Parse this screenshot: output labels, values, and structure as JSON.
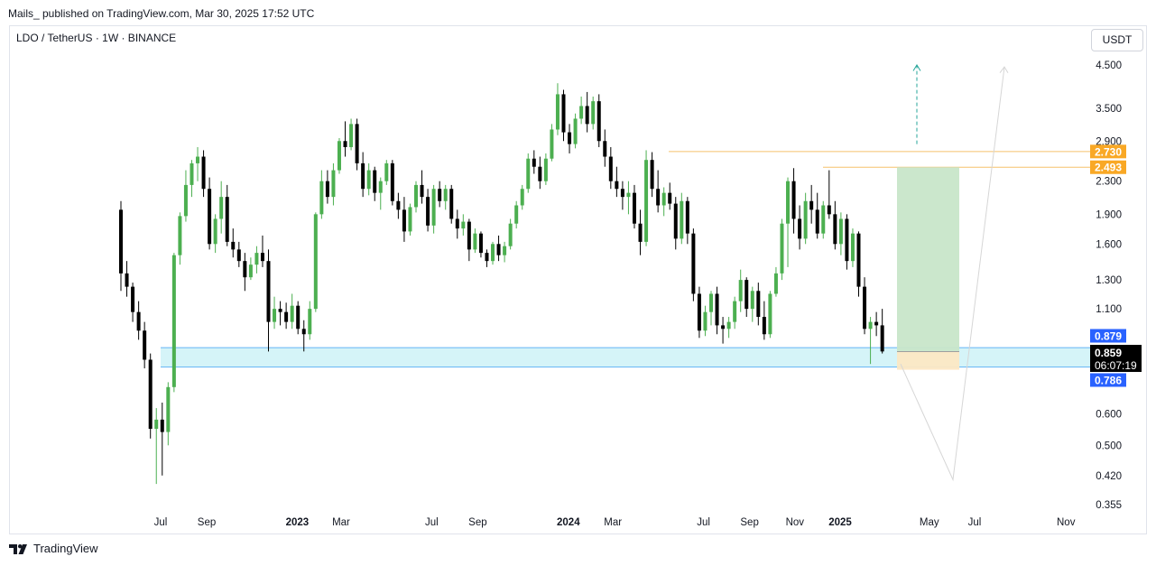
{
  "header": {
    "published": "Mails_ published on TradingView.com, Mar 30, 2025 17:52 UTC",
    "symbol": "LDO / TetherUS · 1W · BINANCE",
    "currency_button": "USDT"
  },
  "footer": {
    "brand": "TradingView"
  },
  "colors": {
    "up": "#4caf50",
    "down": "#000000",
    "zone": "#b2ebf2",
    "zone_line": "#64b5f6",
    "target_fill": "#c8e6c9",
    "stop_fill": "#fce8c4",
    "level_line": "#f5c26b",
    "label_orange": "#f9a825",
    "label_blue": "#2962ff",
    "label_black": "#000000",
    "arrow": "#26a69a"
  },
  "chart_data": {
    "type": "candlestick",
    "symbol": "LDO / TetherUS",
    "interval": "1W",
    "exchange": "BINANCE",
    "scale": "log",
    "ylim": [
      0.34,
      5.0
    ],
    "y_ticks": [
      "4.500",
      "3.500",
      "2.900",
      "2.300",
      "1.900",
      "1.600",
      "1.300",
      "1.100",
      "0.600",
      "0.500",
      "0.420",
      "0.355"
    ],
    "y_tick_values": [
      4.5,
      3.5,
      2.9,
      2.3,
      1.9,
      1.6,
      1.3,
      1.1,
      0.6,
      0.5,
      0.42,
      0.355
    ],
    "x_ticks": [
      {
        "label": "Jul",
        "date": "2022-07-01",
        "bold": false
      },
      {
        "label": "Sep",
        "date": "2022-09-01",
        "bold": false
      },
      {
        "label": "2023",
        "date": "2023-01-01",
        "bold": true
      },
      {
        "label": "Mar",
        "date": "2023-03-01",
        "bold": false
      },
      {
        "label": "Jul",
        "date": "2023-07-01",
        "bold": false
      },
      {
        "label": "Sep",
        "date": "2023-09-01",
        "bold": false
      },
      {
        "label": "2024",
        "date": "2024-01-01",
        "bold": true
      },
      {
        "label": "Mar",
        "date": "2024-03-01",
        "bold": false
      },
      {
        "label": "Jul",
        "date": "2024-07-01",
        "bold": false
      },
      {
        "label": "Sep",
        "date": "2024-09-01",
        "bold": false
      },
      {
        "label": "Nov",
        "date": "2024-11-01",
        "bold": false
      },
      {
        "label": "2025",
        "date": "2025-01-01",
        "bold": true
      },
      {
        "label": "May",
        "date": "2025-05-01",
        "bold": false
      },
      {
        "label": "Jul",
        "date": "2025-07-01",
        "bold": false
      },
      {
        "label": "Nov",
        "date": "2025-11-01",
        "bold": false
      }
    ],
    "candles_ohlc": [
      [
        1.95,
        2.05,
        1.22,
        1.35
      ],
      [
        1.35,
        1.45,
        1.18,
        1.25
      ],
      [
        1.25,
        1.28,
        1.02,
        1.08
      ],
      [
        1.08,
        1.15,
        0.92,
        0.97
      ],
      [
        0.97,
        1.02,
        0.78,
        0.82
      ],
      [
        0.82,
        0.85,
        0.52,
        0.55
      ],
      [
        0.55,
        0.62,
        0.4,
        0.58
      ],
      [
        0.58,
        0.64,
        0.42,
        0.54
      ],
      [
        0.54,
        0.72,
        0.5,
        0.7
      ],
      [
        0.7,
        1.52,
        0.68,
        1.5
      ],
      [
        1.5,
        1.92,
        1.42,
        1.88
      ],
      [
        1.88,
        2.45,
        1.82,
        2.25
      ],
      [
        2.25,
        2.6,
        2.1,
        2.55
      ],
      [
        2.55,
        2.8,
        2.3,
        2.65
      ],
      [
        2.65,
        2.75,
        2.1,
        2.2
      ],
      [
        2.2,
        2.35,
        1.55,
        1.6
      ],
      [
        1.6,
        1.9,
        1.52,
        1.85
      ],
      [
        1.85,
        2.3,
        1.7,
        2.1
      ],
      [
        2.1,
        2.25,
        1.58,
        1.62
      ],
      [
        1.62,
        1.75,
        1.48,
        1.55
      ],
      [
        1.55,
        1.62,
        1.4,
        1.45
      ],
      [
        1.45,
        1.52,
        1.22,
        1.32
      ],
      [
        1.32,
        1.48,
        1.3,
        1.42
      ],
      [
        1.42,
        1.58,
        1.35,
        1.52
      ],
      [
        1.52,
        1.68,
        1.4,
        1.45
      ],
      [
        1.45,
        1.55,
        0.86,
        1.02
      ],
      [
        1.02,
        1.18,
        0.98,
        1.1
      ],
      [
        1.1,
        1.15,
        1.0,
        1.08
      ],
      [
        1.08,
        1.14,
        0.98,
        1.02
      ],
      [
        1.02,
        1.2,
        0.98,
        1.12
      ],
      [
        1.12,
        1.15,
        0.95,
        0.98
      ],
      [
        0.98,
        1.03,
        0.86,
        0.95
      ],
      [
        0.95,
        1.15,
        0.92,
        1.1
      ],
      [
        1.1,
        1.92,
        1.08,
        1.9
      ],
      [
        1.9,
        2.45,
        1.85,
        2.3
      ],
      [
        2.3,
        2.45,
        2.02,
        2.1
      ],
      [
        2.1,
        2.55,
        2.0,
        2.45
      ],
      [
        2.45,
        2.95,
        2.4,
        2.9
      ],
      [
        2.9,
        3.25,
        2.65,
        2.8
      ],
      [
        2.8,
        3.3,
        2.75,
        3.2
      ],
      [
        3.2,
        3.3,
        2.45,
        2.55
      ],
      [
        2.55,
        2.72,
        2.1,
        2.2
      ],
      [
        2.2,
        2.55,
        2.12,
        2.45
      ],
      [
        2.45,
        2.5,
        2.05,
        2.15
      ],
      [
        2.15,
        2.35,
        1.95,
        2.3
      ],
      [
        2.3,
        2.6,
        2.25,
        2.55
      ],
      [
        2.55,
        2.6,
        2.0,
        2.05
      ],
      [
        2.05,
        2.15,
        1.85,
        1.95
      ],
      [
        1.95,
        2.1,
        1.62,
        1.72
      ],
      [
        1.72,
        2.02,
        1.68,
        1.98
      ],
      [
        1.98,
        2.3,
        1.92,
        2.25
      ],
      [
        2.25,
        2.45,
        2.02,
        2.1
      ],
      [
        2.1,
        2.2,
        1.72,
        1.78
      ],
      [
        1.78,
        2.25,
        1.7,
        2.2
      ],
      [
        2.2,
        2.3,
        1.98,
        2.05
      ],
      [
        2.05,
        2.25,
        1.95,
        2.2
      ],
      [
        2.2,
        2.25,
        1.8,
        1.85
      ],
      [
        1.85,
        1.95,
        1.65,
        1.75
      ],
      [
        1.75,
        1.9,
        1.68,
        1.82
      ],
      [
        1.82,
        1.85,
        1.45,
        1.55
      ],
      [
        1.55,
        1.75,
        1.52,
        1.7
      ],
      [
        1.7,
        1.72,
        1.48,
        1.52
      ],
      [
        1.52,
        1.55,
        1.4,
        1.45
      ],
      [
        1.45,
        1.62,
        1.42,
        1.6
      ],
      [
        1.6,
        1.68,
        1.45,
        1.5
      ],
      [
        1.5,
        1.62,
        1.44,
        1.58
      ],
      [
        1.58,
        1.85,
        1.55,
        1.8
      ],
      [
        1.8,
        2.05,
        1.75,
        2.0
      ],
      [
        2.0,
        2.25,
        1.95,
        2.2
      ],
      [
        2.2,
        2.7,
        2.15,
        2.62
      ],
      [
        2.62,
        2.75,
        2.4,
        2.5
      ],
      [
        2.5,
        2.65,
        2.2,
        2.3
      ],
      [
        2.3,
        2.7,
        2.25,
        2.62
      ],
      [
        2.62,
        3.2,
        2.58,
        3.1
      ],
      [
        3.1,
        4.05,
        3.0,
        3.8
      ],
      [
        3.8,
        3.9,
        2.9,
        3.05
      ],
      [
        3.05,
        3.2,
        2.7,
        2.85
      ],
      [
        2.85,
        3.4,
        2.78,
        3.3
      ],
      [
        3.3,
        3.75,
        3.2,
        3.55
      ],
      [
        3.55,
        3.85,
        3.05,
        3.2
      ],
      [
        3.2,
        3.75,
        3.1,
        3.65
      ],
      [
        3.65,
        3.8,
        2.8,
        2.9
      ],
      [
        2.9,
        3.1,
        2.5,
        2.65
      ],
      [
        2.65,
        2.8,
        2.2,
        2.3
      ],
      [
        2.3,
        2.5,
        2.1,
        2.2
      ],
      [
        2.2,
        2.3,
        1.95,
        2.1
      ],
      [
        2.1,
        2.3,
        1.9,
        2.15
      ],
      [
        2.15,
        2.25,
        1.75,
        1.8
      ],
      [
        1.8,
        1.95,
        1.5,
        1.62
      ],
      [
        1.62,
        2.75,
        1.58,
        2.6
      ],
      [
        2.6,
        2.72,
        2.1,
        2.2
      ],
      [
        2.2,
        2.45,
        1.92,
        2.0
      ],
      [
        2.0,
        2.22,
        1.88,
        2.15
      ],
      [
        2.15,
        2.28,
        1.95,
        2.02
      ],
      [
        2.02,
        2.1,
        1.55,
        1.65
      ],
      [
        1.65,
        2.15,
        1.6,
        2.05
      ],
      [
        2.05,
        2.1,
        1.6,
        1.7
      ],
      [
        1.7,
        1.75,
        1.15,
        1.2
      ],
      [
        1.2,
        1.25,
        0.93,
        0.97
      ],
      [
        0.97,
        1.12,
        0.94,
        1.08
      ],
      [
        1.08,
        1.22,
        1.0,
        1.2
      ],
      [
        1.2,
        1.25,
        0.95,
        1.0
      ],
      [
        1.0,
        1.05,
        0.9,
        0.98
      ],
      [
        0.98,
        1.05,
        0.93,
        1.02
      ],
      [
        1.02,
        1.18,
        0.98,
        1.15
      ],
      [
        1.15,
        1.38,
        1.08,
        1.3
      ],
      [
        1.3,
        1.32,
        1.05,
        1.1
      ],
      [
        1.1,
        1.25,
        1.02,
        1.22
      ],
      [
        1.22,
        1.28,
        1.0,
        1.05
      ],
      [
        1.05,
        1.15,
        0.92,
        0.95
      ],
      [
        0.95,
        1.22,
        0.93,
        1.2
      ],
      [
        1.2,
        1.4,
        1.18,
        1.35
      ],
      [
        1.35,
        1.85,
        1.3,
        1.8
      ],
      [
        1.8,
        2.35,
        1.4,
        2.3
      ],
      [
        2.3,
        2.48,
        1.7,
        1.85
      ],
      [
        1.85,
        2.0,
        1.55,
        1.65
      ],
      [
        1.65,
        2.15,
        1.6,
        2.05
      ],
      [
        2.05,
        2.25,
        1.8,
        1.95
      ],
      [
        1.95,
        2.15,
        1.65,
        1.7
      ],
      [
        1.7,
        2.05,
        1.65,
        2.0
      ],
      [
        2.0,
        2.45,
        1.85,
        1.9
      ],
      [
        1.9,
        2.05,
        1.55,
        1.6
      ],
      [
        1.6,
        1.92,
        1.5,
        1.85
      ],
      [
        1.85,
        1.9,
        1.38,
        1.45
      ],
      [
        1.45,
        1.75,
        1.4,
        1.7
      ],
      [
        1.7,
        1.72,
        1.18,
        1.25
      ],
      [
        1.25,
        1.32,
        0.95,
        0.98
      ],
      [
        0.98,
        1.05,
        0.8,
        1.02
      ],
      [
        1.02,
        1.08,
        0.94,
        1.0
      ],
      [
        1.0,
        1.1,
        0.85,
        0.86
      ]
    ],
    "annotations": {
      "support_zone": {
        "low": 0.786,
        "high": 0.879
      },
      "long_position": {
        "entry": 0.859,
        "target": 2.493,
        "stop": 0.786
      },
      "resistance_levels": [
        2.73,
        2.493
      ],
      "target_arrow_to": 4.5
    },
    "price_labels": [
      {
        "text": "2.730",
        "kind": "orange"
      },
      {
        "text": "2.493",
        "kind": "orange"
      },
      {
        "text": "0.879",
        "kind": "blue"
      },
      {
        "text": "0.859",
        "kind": "black"
      },
      {
        "text": "0.786",
        "kind": "blue"
      }
    ],
    "last_price": "0.859",
    "countdown": "06:07:19"
  }
}
